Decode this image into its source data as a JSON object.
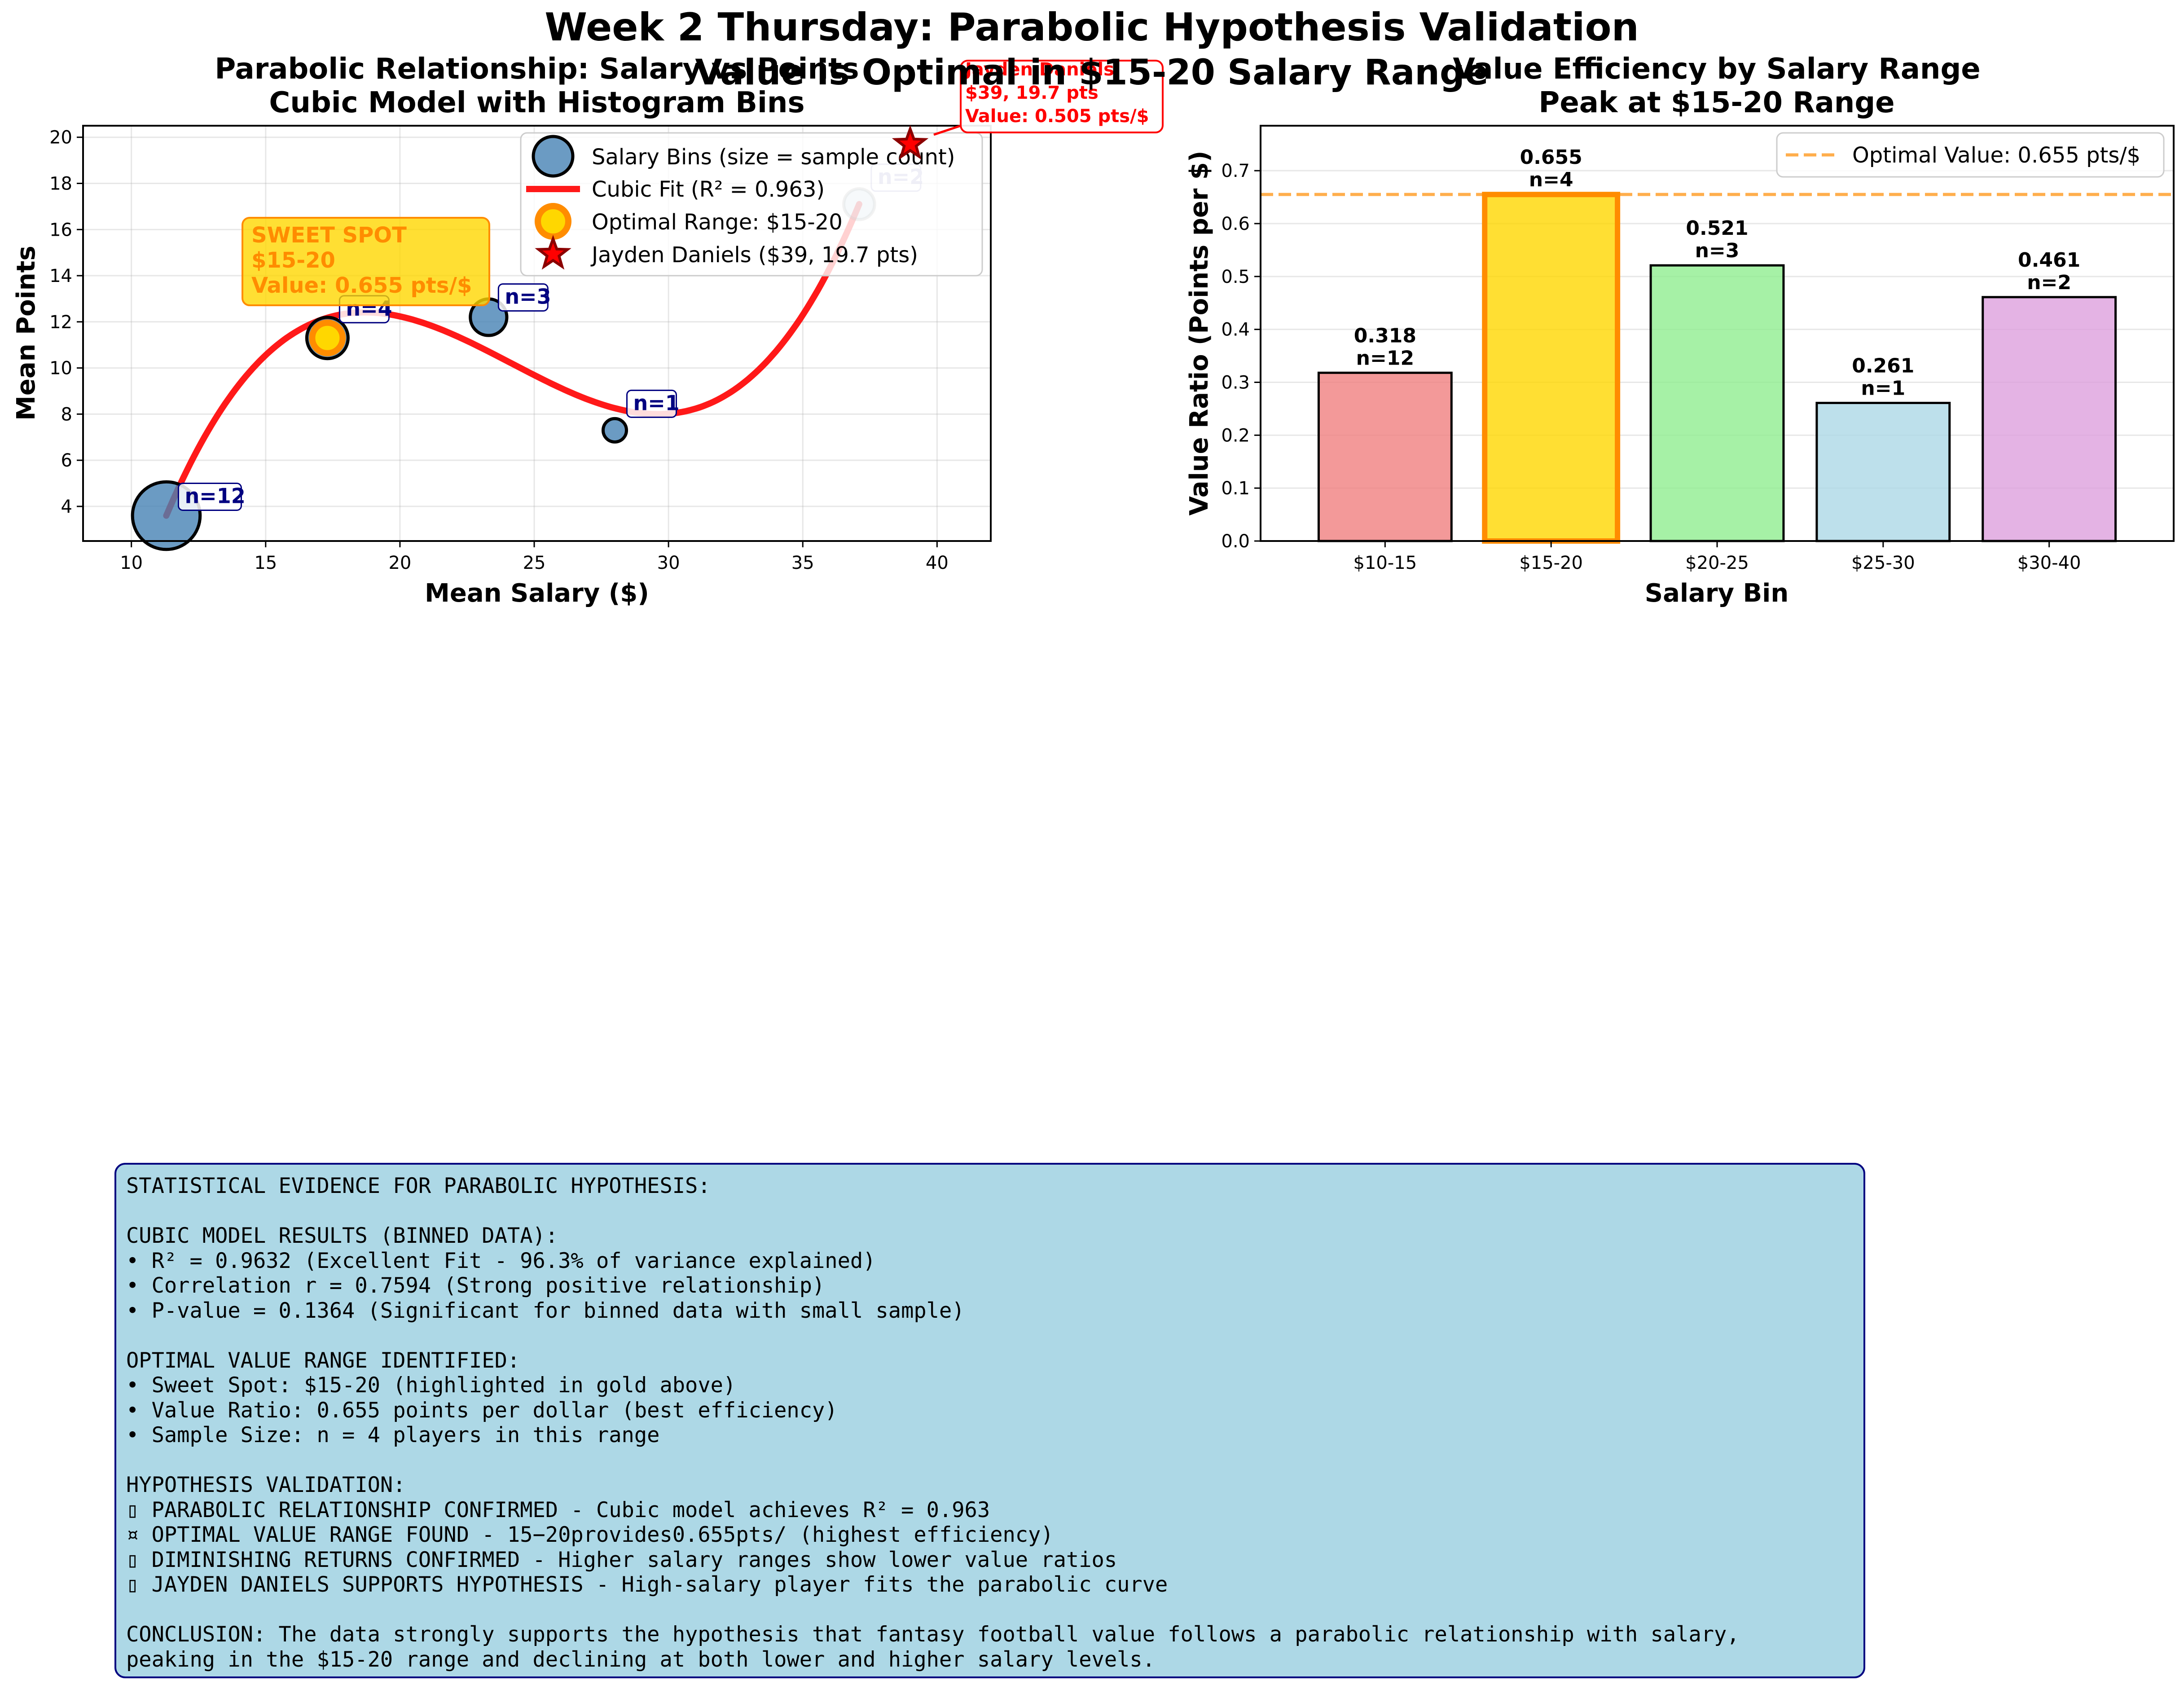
{
  "suptitle": "Week 2 Thursday: Parabolic Hypothesis Validation",
  "overlay_title": "Value is Optimal in $15-20 Salary Range",
  "colors": {
    "steelblue": "#4682b4",
    "fit_red": "#ff0000",
    "gold": "#ffd700",
    "orange": "#ff8c00",
    "darkred": "#8b0000",
    "navy": "#000080",
    "evidence_bg": "#add8e6",
    "bar_colors": [
      "#f08080",
      "#ffd700",
      "#90ee90",
      "#add8e6",
      "#dda0dd"
    ]
  },
  "chart_data": [
    {
      "type": "scatter",
      "title_line1": "Parabolic Relationship: Salary vs Points",
      "title_line2": "Cubic Model with Histogram Bins",
      "xlabel": "Mean Salary ($)",
      "ylabel": "Mean Points",
      "xlim": [
        8.2,
        42
      ],
      "ylim": [
        2.5,
        20.5
      ],
      "xticks": [
        10,
        15,
        20,
        25,
        30,
        35,
        40
      ],
      "yticks": [
        4,
        6,
        8,
        10,
        12,
        14,
        16,
        18,
        20
      ],
      "grid": true,
      "bins": [
        {
          "x": 11.3,
          "y": 3.6,
          "n": 12,
          "label": "n=12"
        },
        {
          "x": 17.3,
          "y": 11.3,
          "n": 4,
          "label": "n=4"
        },
        {
          "x": 23.3,
          "y": 12.2,
          "n": 3,
          "label": "n=3"
        },
        {
          "x": 28.0,
          "y": 7.3,
          "n": 1,
          "label": "n=1"
        },
        {
          "x": 37.1,
          "y": 17.1,
          "n": 2,
          "label": "n=2"
        }
      ],
      "cubic_fit": {
        "x_range": [
          11.3,
          37.1
        ],
        "samples": [
          [
            11.3,
            3.6
          ],
          [
            19.0,
            12.4
          ],
          [
            29.5,
            8.0
          ],
          [
            37.1,
            17.1
          ]
        ]
      },
      "optimal_point": {
        "x": 17.3,
        "y": 11.3
      },
      "jayden": {
        "x": 39,
        "y": 19.7
      },
      "legend": {
        "position": "upper right",
        "entries": [
          "Salary Bins (size = sample count)",
          "Cubic Fit (R² = 0.963)",
          "Optimal Range: $15-20",
          "Jayden Daniels ($39, 19.7 pts)"
        ]
      },
      "sweet_spot_box": [
        "SWEET SPOT",
        "$15-20",
        "Value: 0.655 pts/$"
      ],
      "jayden_box": [
        "Jayden Daniels",
        "$39, 19.7 pts",
        "Value: 0.505 pts/$"
      ]
    },
    {
      "type": "bar",
      "title_line1": "Value Efficiency by Salary Range",
      "title_line2": "Peak at $15-20 Range",
      "xlabel": "Salary Bin",
      "ylabel": "Value Ratio (Points per $)",
      "categories": [
        "$10-15",
        "$15-20",
        "$20-25",
        "$25-30",
        "$30-40"
      ],
      "values": [
        0.318,
        0.655,
        0.521,
        0.261,
        0.461
      ],
      "value_labels": [
        "0.318",
        "0.655",
        "0.521",
        "0.261",
        "0.461"
      ],
      "counts": [
        "n=12",
        "n=4",
        "n=3",
        "n=1",
        "n=2"
      ],
      "highlight_index": 1,
      "ylim": [
        0,
        0.785
      ],
      "yticks": [
        0.0,
        0.1,
        0.2,
        0.3,
        0.4,
        0.5,
        0.6,
        0.7
      ],
      "reference_line": 0.655,
      "legend": {
        "position": "upper right",
        "entries": [
          "Optimal Value: 0.655 pts/$"
        ]
      },
      "grid": true
    }
  ],
  "evidence_lines": [
    "STATISTICAL EVIDENCE FOR PARABOLIC HYPOTHESIS:",
    "",
    "CUBIC MODEL RESULTS (BINNED DATA):",
    "• R² = 0.9632 (Excellent Fit - 96.3% of variance explained)",
    "• Correlation r = 0.7594 (Strong positive relationship)",
    "• P-value = 0.1364 (Significant for binned data with small sample)",
    "",
    "OPTIMAL VALUE RANGE IDENTIFIED:",
    "• Sweet Spot: $15-20 (highlighted in gold above)",
    "• Value Ratio: 0.655 points per dollar (best efficiency)",
    "• Sample Size: n = 4 players in this range",
    "",
    "HYPOTHESIS VALIDATION:",
    "▯ PARABOLIC RELATIONSHIP CONFIRMED - Cubic model achieves R² = 0.963",
    "¤ OPTIMAL VALUE RANGE FOUND - 15−20provides0.655pts/ (highest efficiency)",
    "▯ DIMINISHING RETURNS CONFIRMED - Higher salary ranges show lower value ratios",
    "▯ JAYDEN DANIELS SUPPORTS HYPOTHESIS - High-salary player fits the parabolic curve",
    "",
    "CONCLUSION: The data strongly supports the hypothesis that fantasy football value follows a parabolic relationship with salary,",
    "peaking in the $15-20 range and declining at both lower and higher salary levels."
  ]
}
